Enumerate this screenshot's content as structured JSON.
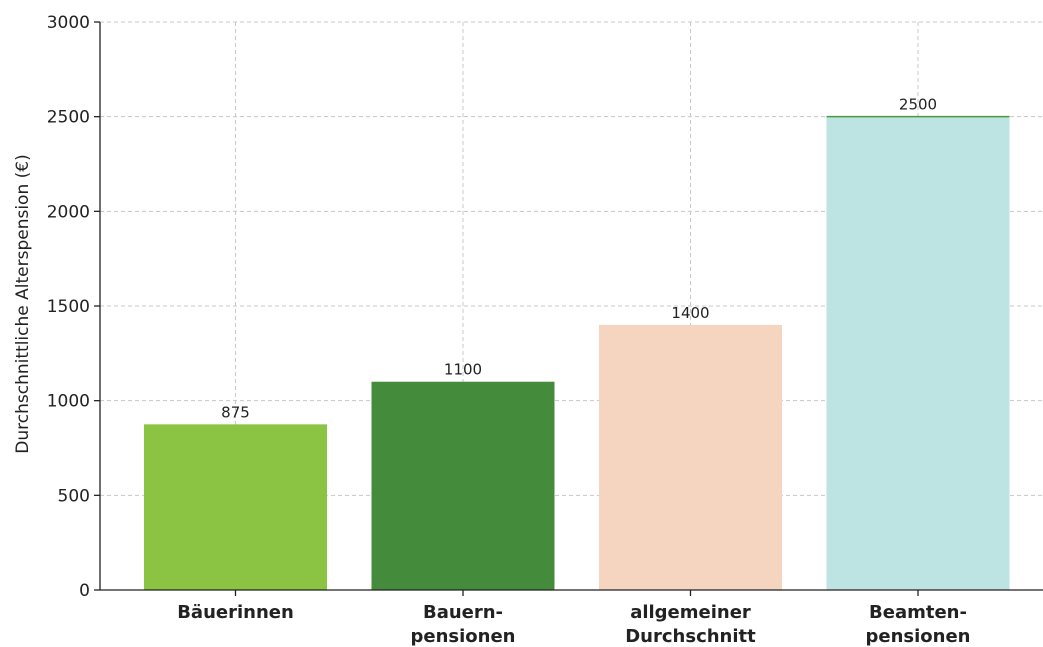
{
  "chart_data": {
    "type": "bar",
    "categories": [
      [
        "Bäuerinnen"
      ],
      [
        "Bauern-",
        "pensionen"
      ],
      [
        "allgemeiner",
        "Durchschnitt"
      ],
      [
        "Beamten-",
        "pensionen"
      ]
    ],
    "values": [
      875,
      1100,
      1400,
      2500
    ],
    "value_labels": [
      "875",
      "1100",
      "1400",
      "2500"
    ],
    "colors": [
      "#8bc443",
      "#448b3b",
      "#f6d5c0",
      "#bde3e2"
    ],
    "title": "",
    "xlabel": "",
    "ylabel": "Durchschnittliche Alterspension (€)",
    "ylim": [
      0,
      3000
    ],
    "yticks": [
      0,
      500,
      1000,
      1500,
      2000,
      2500,
      3000
    ],
    "grid": true
  }
}
